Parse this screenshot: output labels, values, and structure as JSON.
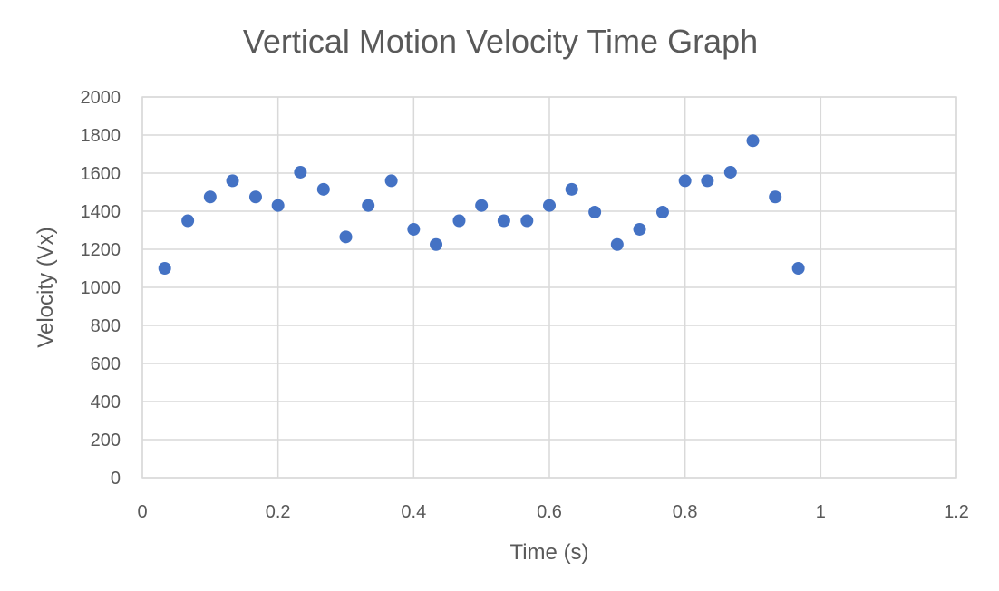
{
  "chart_data": {
    "type": "scatter",
    "title": "Vertical Motion Velocity Time Graph",
    "xlabel": "Time (s)",
    "ylabel": "Velocity (Vx)",
    "xlim": [
      0,
      1.2
    ],
    "ylim": [
      0,
      2000
    ],
    "xticks": [
      0,
      0.2,
      0.4,
      0.6,
      0.8,
      1,
      1.2
    ],
    "xtick_labels": [
      "0",
      "0.2",
      "0.4",
      "0.6",
      "0.8",
      "1",
      "1.2"
    ],
    "yticks": [
      0,
      200,
      400,
      600,
      800,
      1000,
      1200,
      1400,
      1600,
      1800,
      2000
    ],
    "ytick_labels": [
      "0",
      "200",
      "400",
      "600",
      "800",
      "1000",
      "1200",
      "1400",
      "1600",
      "1800",
      "2000"
    ],
    "grid": true,
    "legend": "none",
    "marker_color": "#4472c4",
    "series": [
      {
        "points": [
          [
            0.033,
            1100
          ],
          [
            0.067,
            1350
          ],
          [
            0.1,
            1475
          ],
          [
            0.133,
            1560
          ],
          [
            0.167,
            1475
          ],
          [
            0.2,
            1430
          ],
          [
            0.233,
            1605
          ],
          [
            0.267,
            1515
          ],
          [
            0.3,
            1265
          ],
          [
            0.333,
            1430
          ],
          [
            0.367,
            1560
          ],
          [
            0.4,
            1305
          ],
          [
            0.433,
            1225
          ],
          [
            0.467,
            1350
          ],
          [
            0.5,
            1430
          ],
          [
            0.533,
            1350
          ],
          [
            0.567,
            1350
          ],
          [
            0.6,
            1430
          ],
          [
            0.633,
            1515
          ],
          [
            0.667,
            1395
          ],
          [
            0.7,
            1225
          ],
          [
            0.733,
            1305
          ],
          [
            0.767,
            1395
          ],
          [
            0.8,
            1560
          ],
          [
            0.833,
            1560
          ],
          [
            0.867,
            1605
          ],
          [
            0.9,
            1770
          ],
          [
            0.933,
            1475
          ],
          [
            0.967,
            1100
          ]
        ]
      }
    ]
  }
}
